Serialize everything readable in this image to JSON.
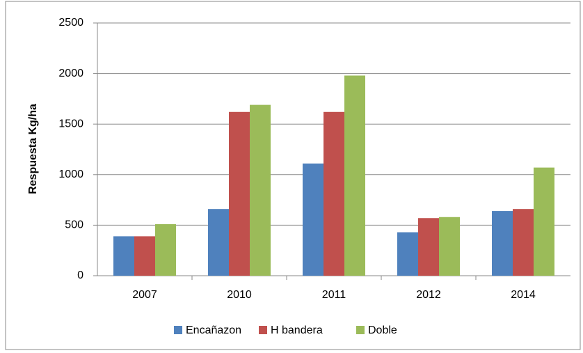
{
  "chart_data": {
    "type": "bar",
    "y_label": "Respuesta Kg/ha",
    "categories": [
      "2007",
      "2010",
      "2011",
      "2012",
      "2014"
    ],
    "series": [
      {
        "name": "Encañazon",
        "color": "#4f81bd",
        "values": [
          390,
          660,
          1110,
          430,
          640
        ]
      },
      {
        "name": "H bandera",
        "color": "#c0504d",
        "values": [
          390,
          1620,
          1620,
          570,
          660
        ]
      },
      {
        "name": "Doble",
        "color": "#9bbb59",
        "values": [
          510,
          1690,
          1980,
          580,
          1070
        ]
      }
    ],
    "ylim": [
      0,
      2500
    ],
    "yticks": [
      0,
      500,
      1000,
      1500,
      2000,
      2500
    ],
    "grid": true,
    "legend": "bottom"
  }
}
